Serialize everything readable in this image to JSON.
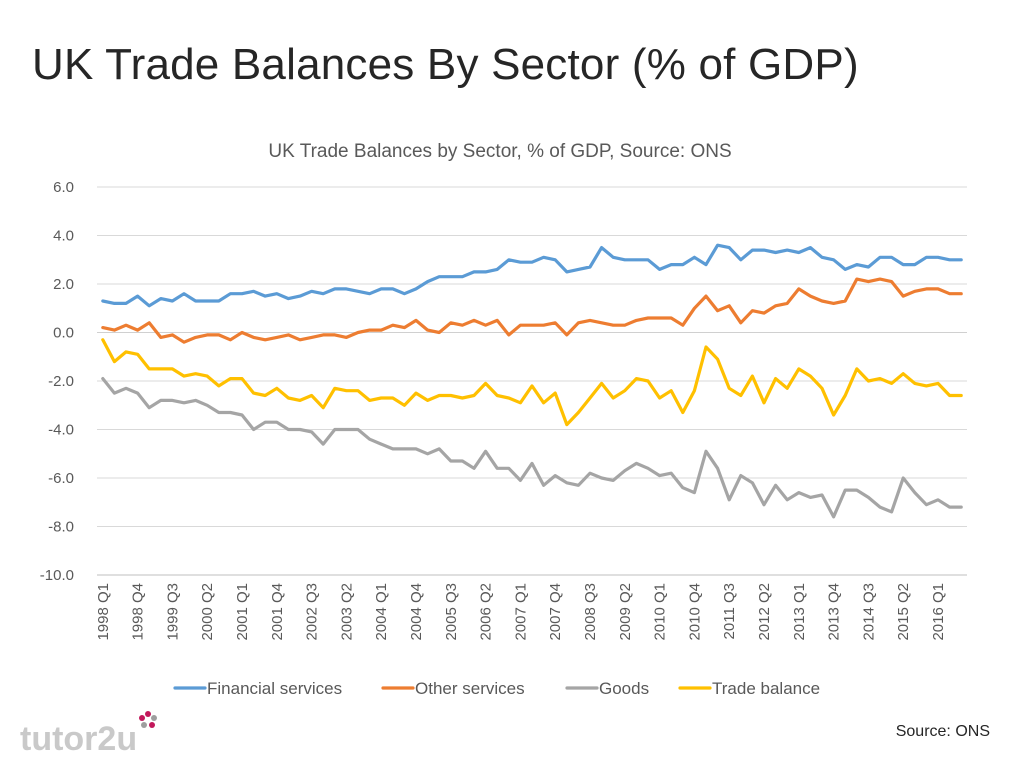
{
  "slide": {
    "title": "UK Trade Balances By Sector (% of GDP)",
    "source_note": "Source: ONS",
    "logo_text": "tutor2u"
  },
  "chart_data": {
    "type": "line",
    "title": "UK Trade Balances by Sector, % of GDP, Source: ONS",
    "xlabel": "",
    "ylabel": "",
    "ylim": [
      -10,
      6
    ],
    "yticks": [
      6,
      4,
      2,
      0,
      -2,
      -4,
      -6,
      -8,
      -10
    ],
    "ytick_labels": [
      "6.0",
      "4.0",
      "2.0",
      "0.0",
      "-2.0",
      "-4.0",
      "-6.0",
      "-8.0",
      "-10.0"
    ],
    "grid": true,
    "legend_position": "bottom",
    "start_year": 1998,
    "start_quarter": 1,
    "n_points": 75,
    "tick_labels": [
      "1998 Q1",
      "1998 Q4",
      "1999 Q3",
      "2000 Q2",
      "2001 Q1",
      "2001 Q4",
      "2002 Q3",
      "2003 Q2",
      "2004 Q1",
      "2004 Q4",
      "2005 Q3",
      "2006 Q2",
      "2007 Q1",
      "2007 Q4",
      "2008 Q3",
      "2009 Q2",
      "2010 Q1",
      "2010 Q4",
      "2011 Q3",
      "2012 Q2",
      "2013 Q1",
      "2013 Q4",
      "2014 Q3",
      "2015 Q2",
      "2016 Q1"
    ],
    "series": [
      {
        "name": "Financial services",
        "color": "#5B9BD5",
        "values": [
          1.3,
          1.2,
          1.2,
          1.5,
          1.1,
          1.4,
          1.3,
          1.6,
          1.3,
          1.3,
          1.3,
          1.6,
          1.6,
          1.7,
          1.5,
          1.6,
          1.4,
          1.5,
          1.7,
          1.6,
          1.8,
          1.8,
          1.7,
          1.6,
          1.8,
          1.8,
          1.6,
          1.8,
          2.1,
          2.3,
          2.3,
          2.3,
          2.5,
          2.5,
          2.6,
          3.0,
          2.9,
          2.9,
          3.1,
          3.0,
          2.5,
          2.6,
          2.7,
          3.5,
          3.1,
          3.0,
          3.0,
          3.0,
          2.6,
          2.8,
          2.8,
          3.1,
          2.8,
          3.6,
          3.5,
          3.0,
          3.4,
          3.4,
          3.3,
          3.4,
          3.3,
          3.5,
          3.1,
          3.0,
          2.6,
          2.8,
          2.7,
          3.1,
          3.1,
          2.8,
          2.8,
          3.1,
          3.1,
          3.0,
          3.0
        ]
      },
      {
        "name": "Other services",
        "color": "#ED7D31",
        "values": [
          0.2,
          0.1,
          0.3,
          0.1,
          0.4,
          -0.2,
          -0.1,
          -0.4,
          -0.2,
          -0.1,
          -0.1,
          -0.3,
          0.0,
          -0.2,
          -0.3,
          -0.2,
          -0.1,
          -0.3,
          -0.2,
          -0.1,
          -0.1,
          -0.2,
          0.0,
          0.1,
          0.1,
          0.3,
          0.2,
          0.5,
          0.1,
          0.0,
          0.4,
          0.3,
          0.5,
          0.3,
          0.5,
          -0.1,
          0.3,
          0.3,
          0.3,
          0.4,
          -0.1,
          0.4,
          0.5,
          0.4,
          0.3,
          0.3,
          0.5,
          0.6,
          0.6,
          0.6,
          0.3,
          1.0,
          1.5,
          0.9,
          1.1,
          0.4,
          0.9,
          0.8,
          1.1,
          1.2,
          1.8,
          1.5,
          1.3,
          1.2,
          1.3,
          2.2,
          2.1,
          2.2,
          2.1,
          1.5,
          1.7,
          1.8,
          1.8,
          1.6,
          1.6
        ]
      },
      {
        "name": "Goods",
        "color": "#A5A5A5",
        "values": [
          -1.9,
          -2.5,
          -2.3,
          -2.5,
          -3.1,
          -2.8,
          -2.8,
          -2.9,
          -2.8,
          -3.0,
          -3.3,
          -3.3,
          -3.4,
          -4.0,
          -3.7,
          -3.7,
          -4.0,
          -4.0,
          -4.1,
          -4.6,
          -4.0,
          -4.0,
          -4.0,
          -4.4,
          -4.6,
          -4.8,
          -4.8,
          -4.8,
          -5.0,
          -4.8,
          -5.3,
          -5.3,
          -5.6,
          -4.9,
          -5.6,
          -5.6,
          -6.1,
          -5.4,
          -6.3,
          -5.9,
          -6.2,
          -6.3,
          -5.8,
          -6.0,
          -6.1,
          -5.7,
          -5.4,
          -5.6,
          -5.9,
          -5.8,
          -6.4,
          -6.6,
          -4.9,
          -5.6,
          -6.9,
          -5.9,
          -6.2,
          -7.1,
          -6.3,
          -6.9,
          -6.6,
          -6.8,
          -6.7,
          -7.6,
          -6.5,
          -6.5,
          -6.8,
          -7.2,
          -7.4,
          -6.0,
          -6.6,
          -7.1,
          -6.9,
          -7.2,
          -7.2
        ]
      },
      {
        "name": "Trade balance",
        "color": "#FFC000",
        "values": [
          -0.3,
          -1.2,
          -0.8,
          -0.9,
          -1.5,
          -1.5,
          -1.5,
          -1.8,
          -1.7,
          -1.8,
          -2.2,
          -1.9,
          -1.9,
          -2.5,
          -2.6,
          -2.3,
          -2.7,
          -2.8,
          -2.6,
          -3.1,
          -2.3,
          -2.4,
          -2.4,
          -2.8,
          -2.7,
          -2.7,
          -3.0,
          -2.5,
          -2.8,
          -2.6,
          -2.6,
          -2.7,
          -2.6,
          -2.1,
          -2.6,
          -2.7,
          -2.9,
          -2.2,
          -2.9,
          -2.5,
          -3.8,
          -3.3,
          -2.7,
          -2.1,
          -2.7,
          -2.4,
          -1.9,
          -2.0,
          -2.7,
          -2.4,
          -3.3,
          -2.4,
          -0.6,
          -1.1,
          -2.3,
          -2.6,
          -1.8,
          -2.9,
          -1.9,
          -2.3,
          -1.5,
          -1.8,
          -2.3,
          -3.4,
          -2.6,
          -1.5,
          -2.0,
          -1.9,
          -2.1,
          -1.7,
          -2.1,
          -2.2,
          -2.1,
          -2.6,
          -2.6
        ]
      }
    ]
  }
}
